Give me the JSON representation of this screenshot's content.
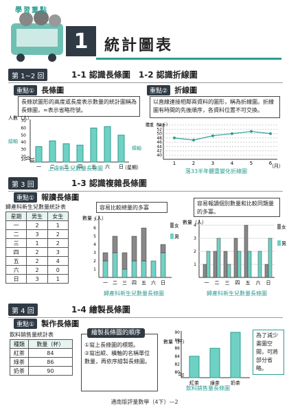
{
  "header": {
    "kicker": "學習重點",
    "chapter_number": "1",
    "chapter_title": "統計圖表"
  },
  "lesson1": {
    "tag": "第 1~2 回",
    "title": "1-1 認識長條圖　1-2 認識折線圖",
    "left": {
      "key": "重點①",
      "name": "長條圖",
      "note": "長條狀圖形的高度或長度表示數量的統計圖稱為長條圖，",
      "note_tail": "表示省略符號。",
      "chart": {
        "ylabel": "人數（人）",
        "ylabel_side": "縱軸",
        "xlabel_side": "橫軸",
        "yticks": [
          "70",
          "60",
          "50",
          "40",
          "30",
          "20",
          "10"
        ],
        "categories": [
          "一",
          "二",
          "三",
          "四",
          "五",
          "六",
          "日"
        ],
        "values": [
          34,
          42,
          38,
          36,
          60,
          62,
          50
        ],
        "xunit": "（星期）",
        "caption": "上週新生兒數量長條圖"
      }
    },
    "right": {
      "key": "重點②",
      "name": "折線圖",
      "note": "以直線連接相鄰兩資料的圖形，稱為折線圖。折線圖有時間的先後順序，各資料位置不可交換。",
      "chart": {
        "ylabel": "體重（公斤）",
        "yticks": [
          "54",
          "52",
          "50",
          "48",
          "46",
          "44",
          "42",
          "40"
        ],
        "categories": [
          "1",
          "2",
          "3",
          "4",
          "5",
          "6"
        ],
        "values": [
          48,
          47,
          49,
          50,
          51,
          50
        ],
        "xunit": "（月）",
        "caption": "落33半年體重變化折線圖"
      }
    }
  },
  "lesson2": {
    "tag": "第 3 回",
    "title": "1-3 認識複雜長條圖",
    "key": "重點①",
    "name": "報讀長條圖",
    "table": {
      "caption": "歸產科新生兒數量統計表",
      "headers": [
        "星期",
        "男生",
        "女生"
      ],
      "rows": [
        [
          "一",
          "2",
          "1"
        ],
        [
          "二",
          "3",
          "2"
        ],
        [
          "三",
          "1",
          "2"
        ],
        [
          "四",
          "2",
          "3"
        ],
        [
          "五",
          "2",
          "4"
        ],
        [
          "六",
          "2",
          "0"
        ],
        [
          "日",
          "3",
          "1"
        ]
      ]
    },
    "note_a": "容易比較總量的多寡",
    "note_b": "容易報讀個別數量和比較同類量的多寡。",
    "chart_a": {
      "ylabel": "數量（人）",
      "yticks": [
        "7",
        "6",
        "5",
        "4",
        "3",
        "2",
        "1"
      ],
      "legend": [
        "女",
        "男"
      ],
      "categories": [
        "一",
        "二",
        "三",
        "四",
        "五",
        "六",
        "日"
      ],
      "male": [
        2,
        3,
        1,
        2,
        2,
        2,
        3
      ],
      "female": [
        1,
        2,
        2,
        3,
        4,
        0,
        1
      ],
      "xunit": "（星期）",
      "caption": "歸產科新生兒數量長條圖"
    },
    "chart_b": {
      "ylabel": "數量（人）",
      "yticks": [
        "4",
        "3",
        "2",
        "1"
      ],
      "legend": [
        "女",
        "男"
      ],
      "categories": [
        "一",
        "二",
        "三",
        "四",
        "五",
        "六",
        "日"
      ],
      "male": [
        2,
        3,
        1,
        2,
        2,
        2,
        3
      ],
      "female": [
        1,
        2,
        2,
        3,
        4,
        0,
        1
      ],
      "xunit": "（星期）",
      "caption": "歸產科新生兒數量長條圖"
    }
  },
  "lesson3": {
    "tag": "第 4 回",
    "title": "1-4 繪製長條圖",
    "key": "重點①",
    "name": "製作長條圖",
    "table": {
      "caption": "飲料銷售量統計表",
      "headers": [
        "種類",
        "數量（杯）"
      ],
      "rows": [
        [
          "紅茶",
          "84"
        ],
        [
          "綠茶",
          "86"
        ],
        [
          "奶茶",
          "90"
        ]
      ]
    },
    "order_box": {
      "head": "繪製長條圖的順序",
      "steps": [
        "①寫上長條圖的標題。",
        "②寫出縱、橫軸的名稱單位數量，再依序繪製長條圖。"
      ]
    },
    "chart": {
      "ylabel": "數量（杯）",
      "yticks": [
        "90",
        "88",
        "86",
        "84",
        "82",
        "80"
      ],
      "categories": [
        "紅茶",
        "綠茶",
        "奶茶"
      ],
      "values": [
        84,
        86,
        90
      ],
      "caption": "飲料銷售量長條圖"
    },
    "side_note": "為了減少畫圖空間，可將部分省略。"
  },
  "footer": "通南版評量數學（4下）—2",
  "colors": {
    "accent": "#2a9d8f",
    "dark": "#2f3a44"
  }
}
